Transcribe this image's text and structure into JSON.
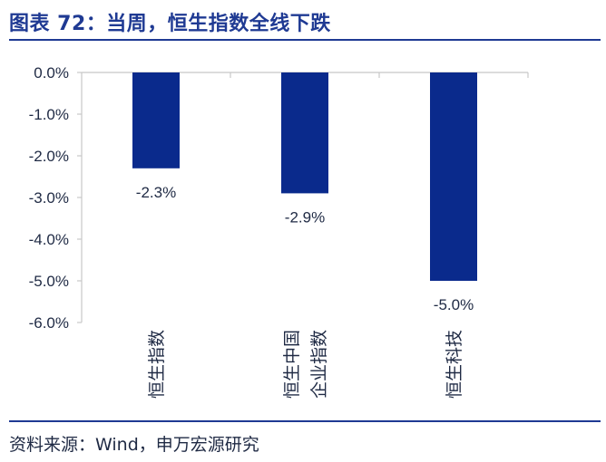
{
  "title": "图表 72：当周，恒生指数全线下跌",
  "source": "资料来源：Wind，申万宏源研究",
  "colors": {
    "bar": "#0a2a8c",
    "axis": "#c8c8c8",
    "text": "#1f2a44",
    "title": "#1f3a93"
  },
  "chart_data": {
    "type": "bar",
    "categories": [
      [
        "恒生指数"
      ],
      [
        "恒生中国",
        "企业指数"
      ],
      [
        "恒生科技"
      ]
    ],
    "values": [
      -2.3,
      -2.9,
      -5.0
    ],
    "value_labels": [
      "-2.3%",
      "-2.9%",
      "-5.0%"
    ],
    "ylim": [
      -6.0,
      0.0
    ],
    "yticks": [
      0.0,
      -1.0,
      -2.0,
      -3.0,
      -4.0,
      -5.0,
      -6.0
    ],
    "ytick_labels": [
      "0.0%",
      "-1.0%",
      "-2.0%",
      "-3.0%",
      "-4.0%",
      "-5.0%",
      "-6.0%"
    ],
    "grid": false,
    "legend": "none"
  }
}
